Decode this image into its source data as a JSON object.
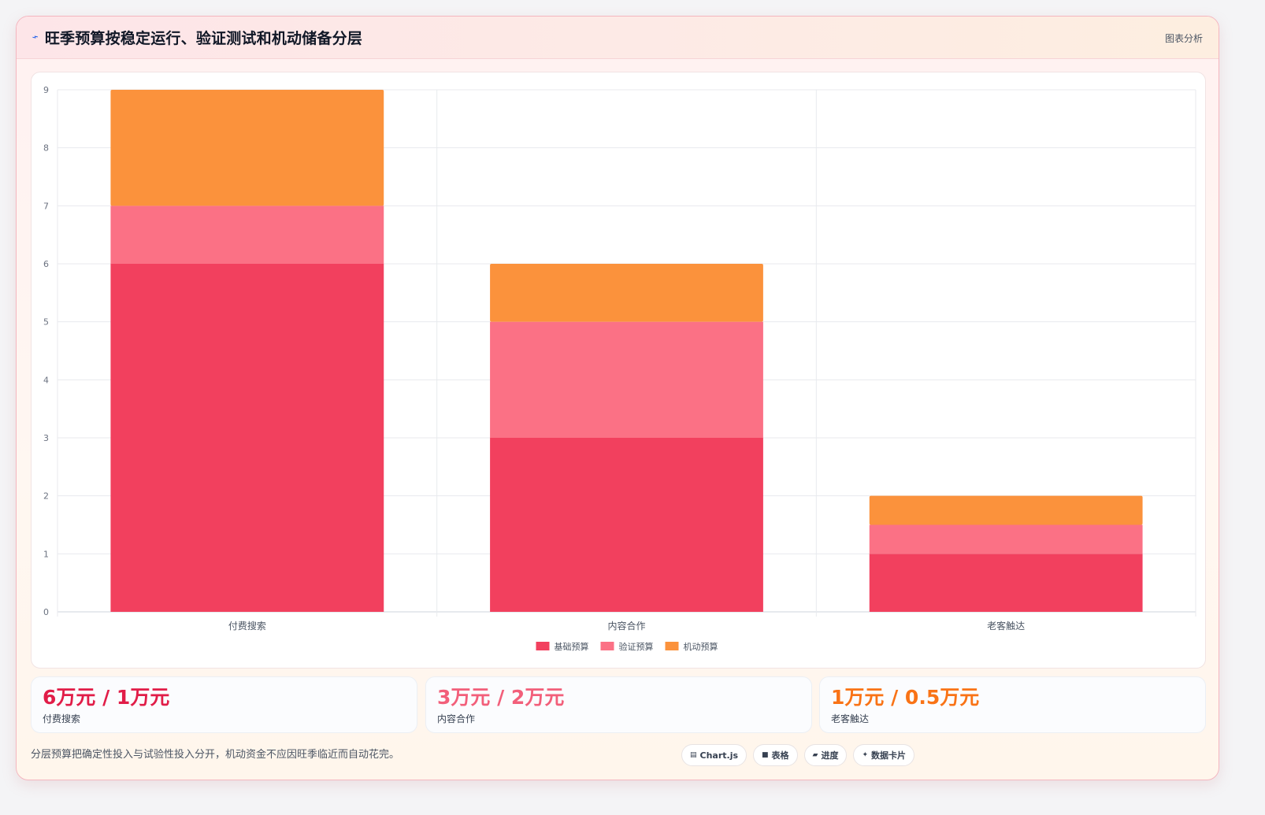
{
  "header": {
    "title": "旺季预算按稳定运行、验证测试和机动储备分层",
    "meta": "图表分析"
  },
  "colors": {
    "base": "#f2405e",
    "test": "#fb7185",
    "reserve": "#fb923c"
  },
  "chart_data": {
    "type": "bar",
    "stacked": true,
    "categories": [
      "付费搜索",
      "内容合作",
      "老客触达"
    ],
    "series": [
      {
        "name": "基础预算",
        "values": [
          6,
          3,
          1
        ],
        "color": "#f2405e"
      },
      {
        "name": "验证预算",
        "values": [
          1,
          2,
          0.5
        ],
        "color": "#fb7185"
      },
      {
        "name": "机动预算",
        "values": [
          2,
          1,
          0.5
        ],
        "color": "#fb923c"
      }
    ],
    "ylim": [
      0,
      9
    ],
    "yticks": [
      "0",
      "1",
      "2",
      "3",
      "4",
      "5",
      "6",
      "7",
      "8",
      "9"
    ],
    "grid": true,
    "legend": "bottom"
  },
  "stats": [
    {
      "value": "6万元 / 1万元",
      "label": "付费搜索",
      "color": "#e11d48"
    },
    {
      "value": "3万元 / 2万元",
      "label": "内容合作",
      "color": "#f25f7a"
    },
    {
      "value": "1万元 / 0.5万元",
      "label": "老客触达",
      "color": "#f97316"
    }
  ],
  "footnote": "分层预算把确定性投入与试验性投入分开，机动资金不应因旺季临近而自动花完。",
  "tags": [
    {
      "icon": "chart-icon",
      "glyph": "▤",
      "label": "Chart.js"
    },
    {
      "icon": "table-icon",
      "glyph": "■",
      "label": "表格"
    },
    {
      "icon": "progress-icon",
      "glyph": "▰",
      "label": "进度"
    },
    {
      "icon": "sparkle-icon",
      "glyph": "✦",
      "label": "数据卡片"
    }
  ]
}
